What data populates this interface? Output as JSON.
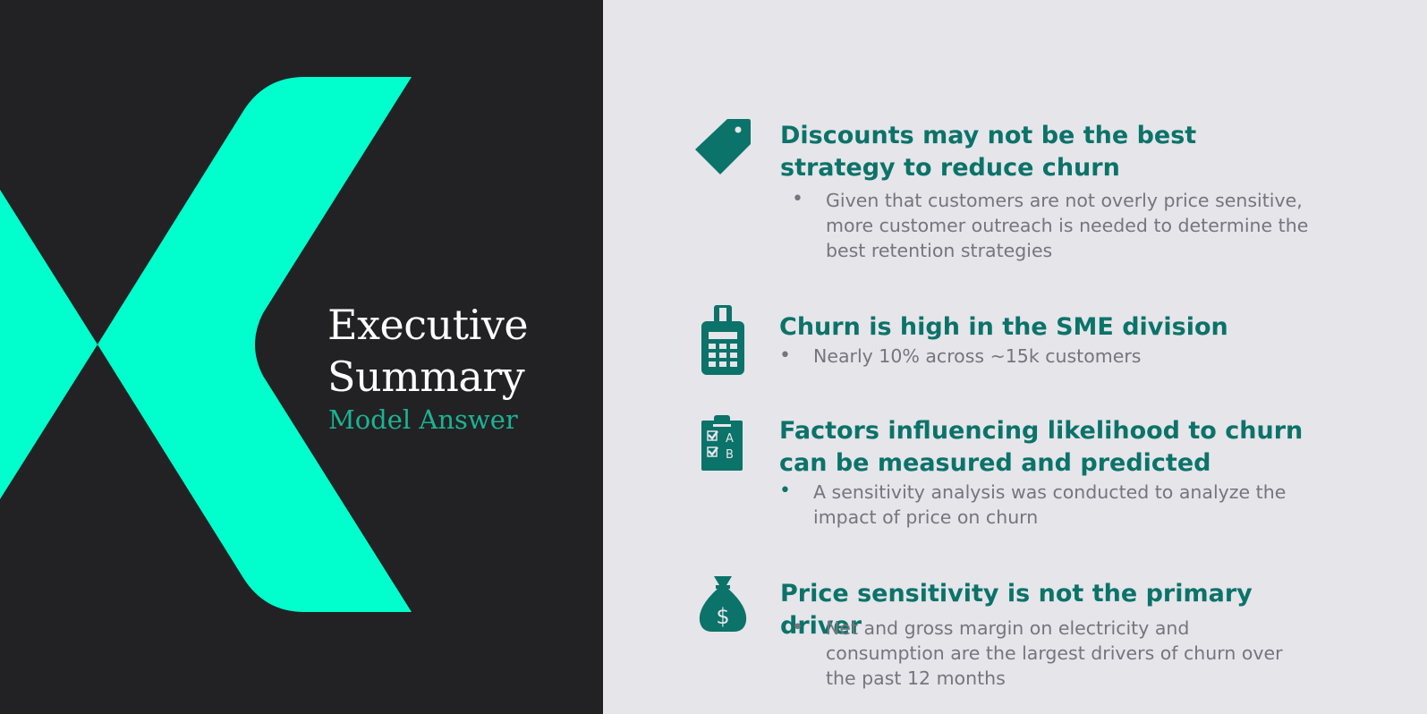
{
  "title": {
    "line1": "Executive",
    "line2": "Summary",
    "subtitle": "Model Answer"
  },
  "colors": {
    "left_background": "#222224",
    "right_background": "#e6e5ea",
    "accent_green": "#00ffcc",
    "heading_teal": "#0b7369",
    "subtitle_green": "#1bb394",
    "body_gray": "#76757b"
  },
  "sections": [
    {
      "icon": "price-tag-icon",
      "heading": "Discounts may not be the best strategy to reduce churn",
      "bullet_marker": "•",
      "bullet": "Given that customers are not overly price sensitive, more customer outreach is needed to determine the best retention strategies"
    },
    {
      "icon": "calculator-icon",
      "heading": "Churn is high in the SME division",
      "bullet_marker": "•",
      "bullet": "Nearly 10% across ~15k customers"
    },
    {
      "icon": "checklist-clipboard-icon",
      "heading": "Factors influencing likelihood to churn can be measured and predicted",
      "bullet_marker": "•",
      "bullet": "A sensitivity analysis was conducted to analyze the impact of price on churn"
    },
    {
      "icon": "money-bag-icon",
      "heading": "Price sensitivity is not the primary driver",
      "bullet_marker": "•",
      "bullet": "Net and gross margin on electricity and consumption are the largest drivers of churn over the past 12 months"
    }
  ]
}
